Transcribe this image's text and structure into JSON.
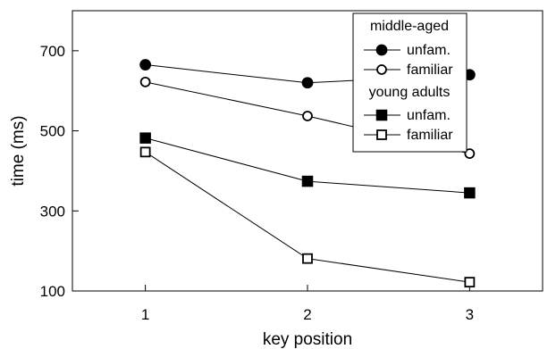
{
  "chart_data": {
    "type": "line",
    "x": [
      1,
      2,
      3
    ],
    "xlim": [
      0.55,
      3.45
    ],
    "ylim": [
      100,
      800
    ],
    "xticks": [
      "1",
      "2",
      "3"
    ],
    "yticks": [
      "100",
      "300",
      "500",
      "700"
    ],
    "xlabel": "key position",
    "ylabel": "time (ms)",
    "grid": false,
    "legend_position": "top-right",
    "groups": [
      {
        "title": "middle-aged",
        "series_ids": [
          0,
          1
        ]
      },
      {
        "title": "young adults",
        "series_ids": [
          2,
          3
        ]
      }
    ],
    "series": [
      {
        "name": "unfam.",
        "group": "middle-aged",
        "marker": "filled-circle",
        "values": [
          665,
          620,
          640
        ]
      },
      {
        "name": "familiar",
        "group": "middle-aged",
        "marker": "open-circle",
        "values": [
          622,
          537,
          443
        ]
      },
      {
        "name": "unfam.",
        "group": "young adults",
        "marker": "filled-square",
        "values": [
          482,
          374,
          345
        ]
      },
      {
        "name": "familiar",
        "group": "young adults",
        "marker": "open-square",
        "values": [
          447,
          181,
          122
        ]
      }
    ]
  }
}
